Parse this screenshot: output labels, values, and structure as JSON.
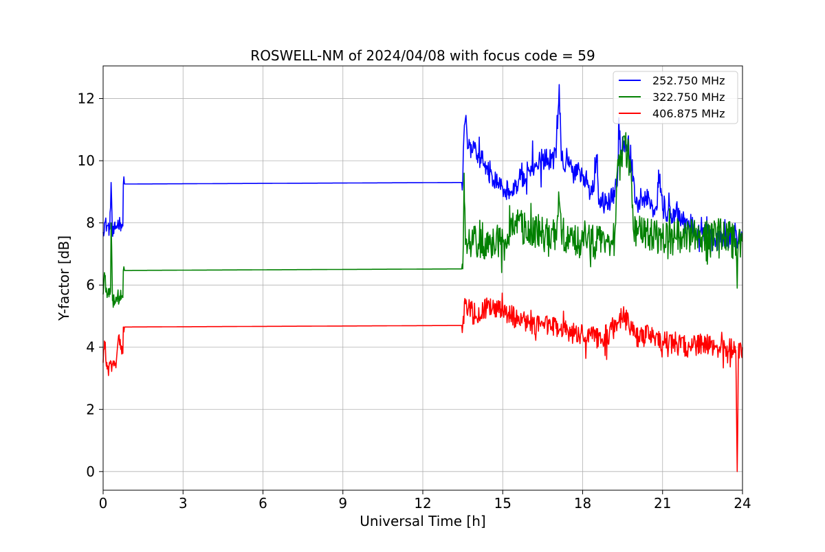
{
  "chart_data": {
    "type": "line",
    "title": "ROSWELL-NM of 2024/04/08 with focus code = 59",
    "xlabel": "Universal Time [h]",
    "ylabel": "Y-factor [dB]",
    "xlim": [
      0,
      24
    ],
    "ylim": [
      -0.6,
      13.05
    ],
    "xticks": [
      0,
      3,
      6,
      9,
      12,
      15,
      18,
      21,
      24
    ],
    "yticks": [
      0,
      2,
      4,
      6,
      8,
      10,
      12
    ],
    "grid": true,
    "legend_position": "top-right",
    "series": [
      {
        "name": "252.750 MHz",
        "color": "#0000ff",
        "keypoints": [
          [
            0.0,
            7.7
          ],
          [
            0.05,
            8.0
          ],
          [
            0.15,
            7.9
          ],
          [
            0.25,
            7.8
          ],
          [
            0.3,
            9.3
          ],
          [
            0.35,
            7.6
          ],
          [
            0.45,
            7.8
          ],
          [
            0.55,
            8.0
          ],
          [
            0.65,
            8.0
          ],
          [
            0.74,
            7.9
          ],
          [
            0.76,
            9.25
          ],
          [
            13.5,
            9.3
          ],
          [
            13.52,
            10.3
          ],
          [
            13.6,
            11.35
          ],
          [
            13.7,
            10.4
          ],
          [
            14.0,
            10.3
          ],
          [
            14.3,
            9.9
          ],
          [
            14.6,
            9.5
          ],
          [
            15.0,
            9.1
          ],
          [
            15.3,
            9.0
          ],
          [
            15.6,
            9.4
          ],
          [
            16.0,
            9.7
          ],
          [
            16.5,
            10.0
          ],
          [
            17.0,
            10.1
          ],
          [
            17.12,
            12.45
          ],
          [
            17.2,
            10.0
          ],
          [
            17.5,
            9.8
          ],
          [
            18.0,
            9.5
          ],
          [
            18.4,
            9.0
          ],
          [
            18.55,
            10.2
          ],
          [
            18.6,
            8.6
          ],
          [
            19.0,
            8.7
          ],
          [
            19.3,
            9.2
          ],
          [
            19.35,
            11.2
          ],
          [
            19.45,
            10.2
          ],
          [
            19.7,
            10.7
          ],
          [
            19.9,
            9.5
          ],
          [
            20.0,
            8.6
          ],
          [
            20.5,
            8.8
          ],
          [
            20.8,
            8.5
          ],
          [
            20.85,
            9.7
          ],
          [
            21.0,
            8.4
          ],
          [
            21.5,
            8.3
          ],
          [
            22.0,
            7.9
          ],
          [
            22.5,
            7.7
          ],
          [
            23.0,
            7.4
          ],
          [
            23.5,
            7.5
          ],
          [
            24.0,
            7.5
          ]
        ]
      },
      {
        "name": "322.750 MHz",
        "color": "#008000",
        "keypoints": [
          [
            0.0,
            5.7
          ],
          [
            0.05,
            6.4
          ],
          [
            0.15,
            5.6
          ],
          [
            0.28,
            5.8
          ],
          [
            0.3,
            8.0
          ],
          [
            0.35,
            5.5
          ],
          [
            0.5,
            5.6
          ],
          [
            0.74,
            5.6
          ],
          [
            0.76,
            6.47
          ],
          [
            13.5,
            6.52
          ],
          [
            13.52,
            7.3
          ],
          [
            13.55,
            9.6
          ],
          [
            13.6,
            7.3
          ],
          [
            14.0,
            7.4
          ],
          [
            14.5,
            7.3
          ],
          [
            15.0,
            7.5
          ],
          [
            15.5,
            7.9
          ],
          [
            16.0,
            7.8
          ],
          [
            16.5,
            7.7
          ],
          [
            17.0,
            7.6
          ],
          [
            17.1,
            9.0
          ],
          [
            17.2,
            7.6
          ],
          [
            17.5,
            7.4
          ],
          [
            18.0,
            7.4
          ],
          [
            18.5,
            7.4
          ],
          [
            19.0,
            7.3
          ],
          [
            19.2,
            7.5
          ],
          [
            19.3,
            9.7
          ],
          [
            19.6,
            10.5
          ],
          [
            19.8,
            9.8
          ],
          [
            19.9,
            7.8
          ],
          [
            20.5,
            7.6
          ],
          [
            21.0,
            7.5
          ],
          [
            21.5,
            7.5
          ],
          [
            22.0,
            7.6
          ],
          [
            22.5,
            7.6
          ],
          [
            23.0,
            7.6
          ],
          [
            23.5,
            7.6
          ],
          [
            23.75,
            7.5
          ],
          [
            23.8,
            5.9
          ],
          [
            23.85,
            7.4
          ],
          [
            24.0,
            7.4
          ]
        ]
      },
      {
        "name": "406.875 MHz",
        "color": "#ff0000",
        "keypoints": [
          [
            0.0,
            3.5
          ],
          [
            0.05,
            4.2
          ],
          [
            0.15,
            3.3
          ],
          [
            0.4,
            3.4
          ],
          [
            0.5,
            3.6
          ],
          [
            0.6,
            4.4
          ],
          [
            0.74,
            3.8
          ],
          [
            0.76,
            4.65
          ],
          [
            13.5,
            4.7
          ],
          [
            13.52,
            5.0
          ],
          [
            13.6,
            5.4
          ],
          [
            14.0,
            5.0
          ],
          [
            14.5,
            5.3
          ],
          [
            15.0,
            5.2
          ],
          [
            15.5,
            4.9
          ],
          [
            16.0,
            4.8
          ],
          [
            16.5,
            4.7
          ],
          [
            17.0,
            4.6
          ],
          [
            17.5,
            4.5
          ],
          [
            18.0,
            4.4
          ],
          [
            18.5,
            4.3
          ],
          [
            19.0,
            4.4
          ],
          [
            19.3,
            4.8
          ],
          [
            19.6,
            5.1
          ],
          [
            19.8,
            4.6
          ],
          [
            20.0,
            4.3
          ],
          [
            20.5,
            4.4
          ],
          [
            21.0,
            4.2
          ],
          [
            21.5,
            4.1
          ],
          [
            22.0,
            4.0
          ],
          [
            22.5,
            4.1
          ],
          [
            23.0,
            4.0
          ],
          [
            23.5,
            4.0
          ],
          [
            23.75,
            3.9
          ],
          [
            23.8,
            0.0
          ],
          [
            23.85,
            3.9
          ],
          [
            24.0,
            4.0
          ]
        ]
      }
    ]
  }
}
